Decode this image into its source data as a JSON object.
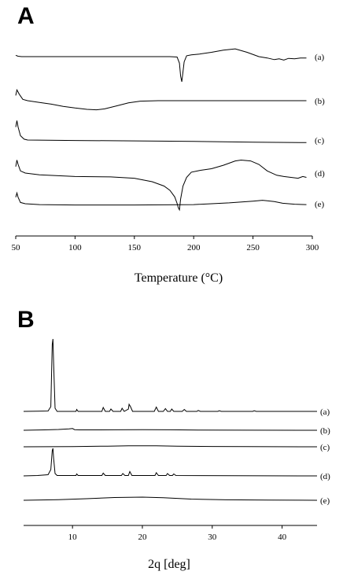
{
  "chart_data": [
    {
      "type": "line",
      "panel_label": "A",
      "xlabel": "Temperature (°C)",
      "ylabel": "",
      "xlim": [
        50,
        300
      ],
      "xticks": [
        50,
        100,
        150,
        200,
        250,
        300
      ],
      "grid": false,
      "y_axis_shown": false,
      "series": [
        {
          "name": "(a)",
          "x": [
            50,
            52,
            55,
            60,
            100,
            150,
            180,
            186,
            188,
            189,
            190,
            191,
            192,
            194,
            198,
            205,
            215,
            225,
            235,
            245,
            255,
            262,
            268,
            272,
            276,
            280,
            285,
            290,
            295
          ],
          "y": [
            0.03,
            0.01,
            0,
            0,
            0,
            0,
            0,
            -0.01,
            -0.15,
            -0.45,
            -0.58,
            -0.35,
            -0.12,
            0.02,
            0.04,
            0.06,
            0.1,
            0.15,
            0.18,
            0.1,
            0,
            -0.03,
            -0.07,
            -0.05,
            -0.08,
            -0.04,
            -0.05,
            -0.03,
            -0.03
          ]
        },
        {
          "name": "(b)",
          "x": [
            50,
            51,
            53,
            56,
            60,
            70,
            80,
            90,
            100,
            110,
            118,
            125,
            135,
            145,
            155,
            170,
            200,
            230,
            260,
            295
          ],
          "y": [
            0.12,
            0.25,
            0.15,
            0.03,
            0,
            -0.04,
            -0.08,
            -0.13,
            -0.17,
            -0.2,
            -0.21,
            -0.19,
            -0.12,
            -0.05,
            -0.01,
            0,
            0,
            0,
            0,
            0
          ]
        },
        {
          "name": "(c)",
          "x": [
            50,
            51,
            52,
            54,
            57,
            60,
            100,
            150,
            200,
            250,
            295
          ],
          "y": [
            0.3,
            0.45,
            0.3,
            0.1,
            0.02,
            0,
            -0.01,
            -0.02,
            -0.03,
            -0.05,
            -0.06
          ]
        },
        {
          "name": "(d)",
          "x": [
            50,
            51,
            52,
            54,
            58,
            70,
            100,
            130,
            150,
            165,
            175,
            180,
            184,
            186,
            187,
            188,
            189,
            191,
            194,
            198,
            205,
            215,
            225,
            235,
            240,
            248,
            255,
            262,
            270,
            276,
            282,
            288,
            292,
            295
          ],
          "y": [
            0.15,
            0.3,
            0.2,
            0.05,
            0,
            -0.04,
            -0.08,
            -0.09,
            -0.12,
            -0.2,
            -0.3,
            -0.4,
            -0.55,
            -0.7,
            -0.8,
            -0.85,
            -0.6,
            -0.3,
            -0.1,
            0.02,
            0.06,
            0.1,
            0.18,
            0.28,
            0.3,
            0.28,
            0.2,
            0.05,
            -0.05,
            -0.08,
            -0.1,
            -0.12,
            -0.08,
            -0.1
          ]
        },
        {
          "name": "(e)",
          "x": [
            50,
            51,
            52,
            54,
            58,
            70,
            100,
            150,
            200,
            230,
            250,
            258,
            262,
            268,
            275,
            285,
            295
          ],
          "y": [
            0.15,
            0.25,
            0.15,
            0.03,
            0,
            -0.02,
            -0.03,
            -0.03,
            -0.02,
            0.02,
            0.06,
            0.08,
            0.07,
            0.05,
            0.01,
            -0.01,
            -0.02
          ]
        }
      ]
    },
    {
      "type": "line",
      "panel_label": "B",
      "xlabel": "2q [deg]",
      "ylabel": "",
      "xlim": [
        3,
        45
      ],
      "xticks": [
        10,
        20,
        30,
        40
      ],
      "grid": false,
      "y_axis_shown": false,
      "series": [
        {
          "name": "(a)",
          "x": [
            3,
            5,
            6.5,
            6.9,
            7.1,
            7.2,
            7.3,
            7.5,
            7.8,
            10.5,
            10.6,
            10.8,
            14.2,
            14.4,
            14.7,
            15.3,
            15.5,
            15.8,
            16.9,
            17.1,
            17.4,
            18.0,
            18.1,
            18.3,
            18.6,
            21.7,
            22.0,
            22.3,
            23.0,
            23.3,
            23.6,
            24.0,
            24.2,
            24.5,
            25.7,
            26.0,
            26.3,
            27.8,
            28.0,
            28.3,
            30.8,
            31.0,
            31.3,
            35.8,
            36.0,
            36.3,
            45
          ],
          "y": [
            0,
            0.02,
            0.05,
            0.6,
            8.5,
            9.2,
            6,
            0.4,
            0,
            0,
            0.25,
            0,
            0,
            0.5,
            0,
            0,
            0.3,
            0,
            0,
            0.4,
            0,
            0.3,
            0.9,
            0.6,
            0,
            0,
            0.55,
            0,
            0,
            0.35,
            0,
            0,
            0.3,
            0,
            0,
            0.25,
            0,
            0,
            0.12,
            0,
            0,
            0.08,
            0,
            0,
            0.08,
            0,
            0
          ]
        },
        {
          "name": "(b)",
          "x": [
            3,
            6,
            8,
            9.5,
            10,
            10.3,
            11,
            13,
            16,
            20,
            24,
            28,
            35,
            45
          ],
          "y": [
            0,
            0.05,
            0.1,
            0.18,
            0.22,
            0.08,
            0.05,
            0.05,
            0.06,
            0.08,
            0.06,
            0.03,
            0.01,
            0
          ]
        },
        {
          "name": "(c)",
          "x": [
            3,
            10,
            15,
            18,
            20,
            22,
            25,
            30,
            35,
            45
          ],
          "y": [
            0,
            0.03,
            0.08,
            0.12,
            0.13,
            0.12,
            0.08,
            0.04,
            0.02,
            0
          ]
        },
        {
          "name": "(d)",
          "x": [
            3,
            5,
            6.5,
            6.9,
            7.1,
            7.2,
            7.3,
            7.5,
            7.8,
            10.5,
            10.6,
            10.8,
            14.2,
            14.4,
            14.7,
            17.0,
            17.2,
            17.5,
            18.0,
            18.2,
            18.5,
            21.8,
            22.0,
            22.3,
            23.4,
            23.6,
            23.9,
            24.3,
            24.5,
            24.8,
            45
          ],
          "y": [
            0,
            0.05,
            0.15,
            0.8,
            3.2,
            3.5,
            2.2,
            0.3,
            0.05,
            0.05,
            0.25,
            0.05,
            0.05,
            0.35,
            0.05,
            0.05,
            0.3,
            0.05,
            0.05,
            0.55,
            0.05,
            0.05,
            0.4,
            0.05,
            0.05,
            0.3,
            0.05,
            0.05,
            0.25,
            0.05,
            0
          ]
        },
        {
          "name": "(e)",
          "x": [
            3,
            8,
            12,
            16,
            20,
            23,
            27,
            32,
            38,
            45
          ],
          "y": [
            0,
            0.08,
            0.2,
            0.35,
            0.4,
            0.32,
            0.15,
            0.06,
            0.02,
            0
          ]
        }
      ]
    }
  ]
}
